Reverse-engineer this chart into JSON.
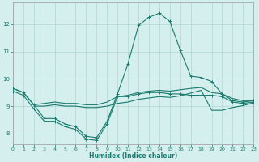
{
  "bg_color": "#d4efed",
  "grid_color": "#b8dbd8",
  "line_color": "#1a7a6e",
  "xlabel": "Humidex (Indice chaleur)",
  "xlim": [
    0,
    23
  ],
  "ylim": [
    7.6,
    12.8
  ],
  "xticks": [
    0,
    1,
    2,
    3,
    4,
    5,
    6,
    7,
    8,
    9,
    10,
    11,
    12,
    13,
    14,
    15,
    16,
    17,
    18,
    19,
    20,
    21,
    22,
    23
  ],
  "yticks": [
    8,
    9,
    10,
    11,
    12
  ],
  "peak_x": [
    0,
    1,
    2,
    3,
    4,
    5,
    6,
    7,
    8,
    9,
    10,
    11,
    12,
    13,
    14,
    15,
    16,
    17,
    18,
    19,
    20,
    21,
    22,
    23
  ],
  "peak_y": [
    9.65,
    9.5,
    9.05,
    8.55,
    8.55,
    8.35,
    8.25,
    7.9,
    7.85,
    8.45,
    9.45,
    10.55,
    11.95,
    12.25,
    12.4,
    12.1,
    11.05,
    10.1,
    10.05,
    9.9,
    9.45,
    9.2,
    9.15,
    9.2
  ],
  "low_x": [
    0,
    1,
    2,
    3,
    4,
    5,
    6,
    7,
    8,
    9,
    10,
    11,
    12,
    13,
    14,
    15,
    16,
    17,
    18,
    19,
    20,
    21,
    22,
    23
  ],
  "low_y": [
    9.55,
    9.4,
    8.9,
    8.45,
    8.45,
    8.25,
    8.15,
    7.8,
    7.75,
    8.35,
    9.35,
    9.35,
    9.45,
    9.5,
    9.5,
    9.45,
    9.45,
    9.4,
    9.4,
    9.4,
    9.35,
    9.15,
    9.1,
    9.15
  ],
  "mid1_x": [
    0,
    1,
    2,
    3,
    4,
    5,
    6,
    7,
    8,
    9,
    10,
    11,
    12,
    13,
    14,
    15,
    16,
    17,
    18,
    19,
    20,
    21,
    22,
    23
  ],
  "mid1_y": [
    9.65,
    9.5,
    9.05,
    9.1,
    9.15,
    9.1,
    9.1,
    9.05,
    9.05,
    9.15,
    9.35,
    9.4,
    9.5,
    9.55,
    9.58,
    9.55,
    9.6,
    9.65,
    9.68,
    9.5,
    9.45,
    9.28,
    9.2,
    9.2
  ],
  "mid2_x": [
    2,
    3,
    4,
    5,
    6,
    7,
    8,
    9,
    10,
    11,
    12,
    13,
    14,
    15,
    16,
    17,
    18,
    19,
    20,
    21,
    22,
    23
  ],
  "mid2_y": [
    9.0,
    9.0,
    9.05,
    9.0,
    9.0,
    8.95,
    8.95,
    9.0,
    9.1,
    9.15,
    9.25,
    9.3,
    9.35,
    9.32,
    9.38,
    9.48,
    9.58,
    8.85,
    8.85,
    8.95,
    9.02,
    9.12
  ]
}
